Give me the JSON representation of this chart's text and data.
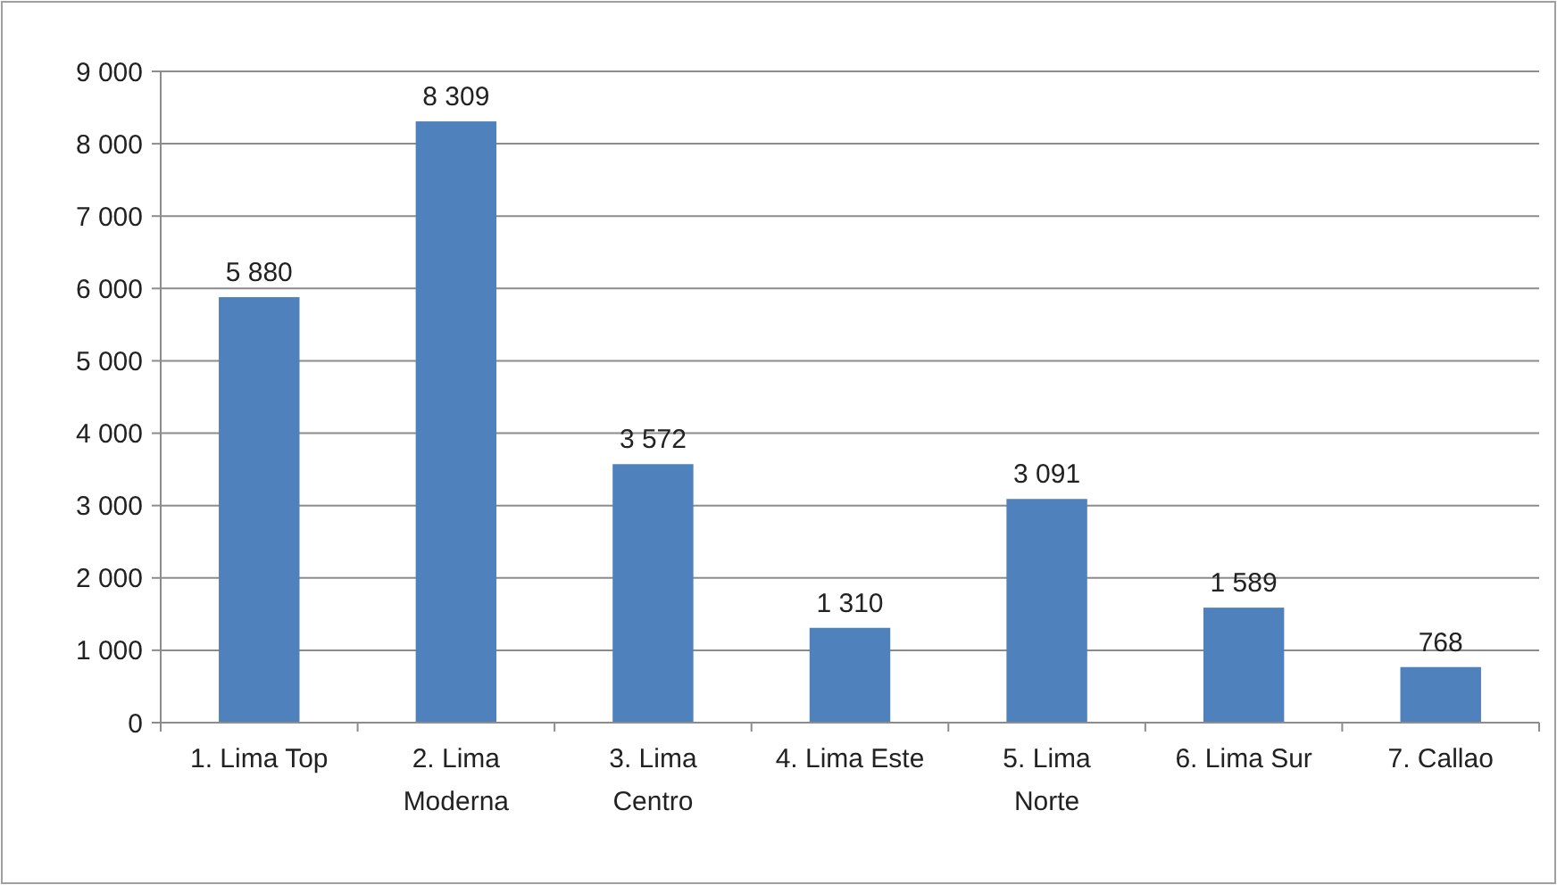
{
  "chart_data": {
    "type": "bar",
    "categories": [
      "1. Lima Top",
      "2. Lima Moderna",
      "3. Lima Centro",
      "4. Lima Este",
      "5. Lima Norte",
      "6. Lima Sur",
      "7. Callao"
    ],
    "values": [
      5880,
      8309,
      3572,
      1310,
      3091,
      1589,
      768
    ],
    "value_labels": [
      "5 880",
      "8 309",
      "3 572",
      "1 310",
      "3 091",
      "1 589",
      "768"
    ],
    "color": "#4f81bd",
    "ylim": [
      0,
      9000
    ],
    "yticks": [
      0,
      {
        "value": 1000,
        "label": "1 000"
      },
      {
        "value": 2000,
        "label": "2 000"
      },
      {
        "value": 3000,
        "label": "3 000"
      },
      {
        "value": 4000,
        "label": "4 000"
      },
      {
        "value": 5000,
        "label": "5 000"
      },
      {
        "value": 6000,
        "label": "6 000"
      },
      {
        "value": 7000,
        "label": "7 000"
      },
      {
        "value": 8000,
        "label": "8 000"
      },
      {
        "value": 9000,
        "label": "9 000"
      }
    ],
    "grid": "y"
  }
}
